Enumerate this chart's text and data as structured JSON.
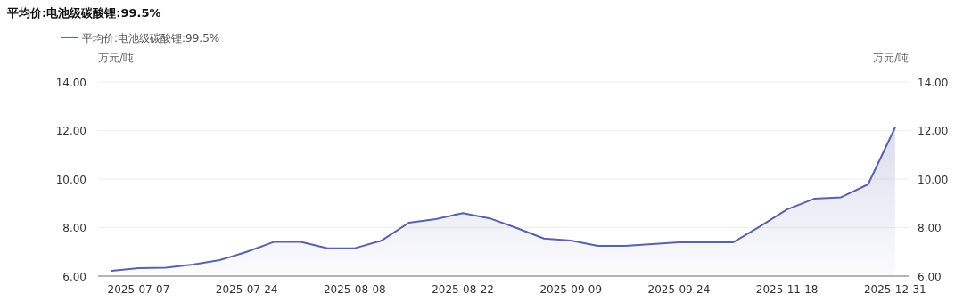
{
  "chart_data": {
    "type": "area",
    "title": "平均价:电池级碳酸锂:99.5%",
    "ylabel": "万元/吨",
    "y2label": "万元/吨",
    "categories": [
      null,
      "2025-07-07",
      null,
      null,
      null,
      "2025-07-24",
      null,
      null,
      null,
      "2025-08-08",
      null,
      null,
      null,
      "2025-08-22",
      null,
      null,
      null,
      "2025-09-09",
      null,
      null,
      null,
      "2025-09-24",
      null,
      null,
      null,
      "2025-11-18",
      null,
      null,
      null,
      "2025-12-31"
    ],
    "series": [
      {
        "name": "平均价:电池级碳酸锂:99.5%",
        "color": "#5a62a8",
        "values": [
          6.22,
          6.33,
          6.35,
          6.48,
          6.66,
          7.0,
          7.41,
          7.41,
          7.15,
          7.15,
          7.47,
          8.2,
          8.35,
          8.6,
          8.38,
          7.98,
          7.55,
          7.47,
          7.25,
          7.25,
          7.32,
          7.39,
          7.39,
          7.39,
          8.05,
          8.75,
          9.19,
          9.25,
          9.78,
          12.13
        ]
      }
    ],
    "ylim": [
      6,
      14
    ],
    "yticks": [
      {
        "value": 6,
        "label": "6.00"
      },
      {
        "value": 8,
        "label": "8.00"
      },
      {
        "value": 10,
        "label": "10.00"
      },
      {
        "value": 12,
        "label": "12.00"
      },
      {
        "value": 14,
        "label": "14.00"
      }
    ],
    "y2lim": [
      6,
      14
    ],
    "y2ticks": [
      {
        "value": 6,
        "label": "6.00"
      },
      {
        "value": 8,
        "label": "8.00"
      },
      {
        "value": 10,
        "label": "10.00"
      },
      {
        "value": 12,
        "label": "12.00"
      },
      {
        "value": 14,
        "label": "14.00"
      }
    ],
    "grid": "y",
    "legend": "top",
    "marker": "none",
    "line_style": "solid"
  }
}
